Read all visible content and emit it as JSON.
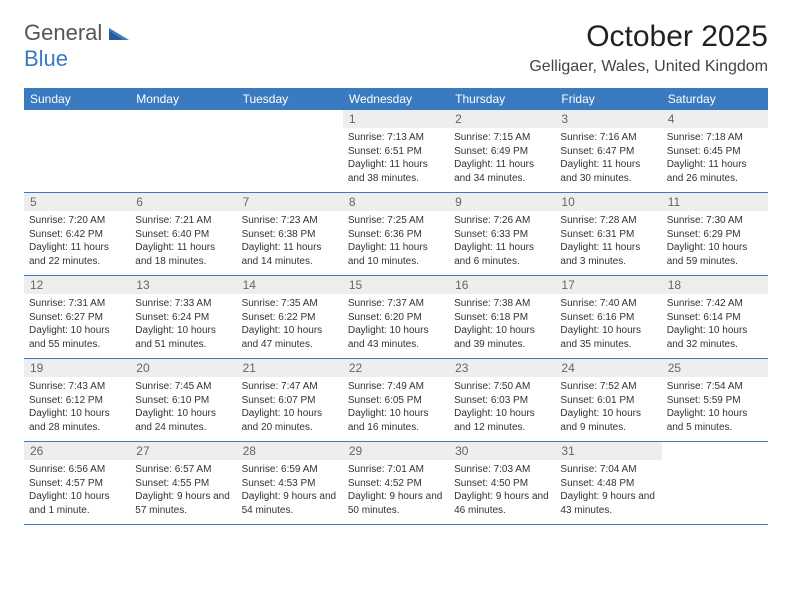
{
  "logo": {
    "general": "General",
    "blue": "Blue"
  },
  "title": "October 2025",
  "location": "Gelligaer, Wales, United Kingdom",
  "colors": {
    "header_bg": "#3a7ac0",
    "header_text": "#ffffff",
    "daynum_bg": "#eeeeee",
    "daynum_text": "#666666",
    "body_text": "#333333",
    "border": "#3a7ac0",
    "page_bg": "#ffffff"
  },
  "weekdays": [
    "Sunday",
    "Monday",
    "Tuesday",
    "Wednesday",
    "Thursday",
    "Friday",
    "Saturday"
  ],
  "weeks": [
    [
      {
        "blank": true
      },
      {
        "blank": true
      },
      {
        "blank": true
      },
      {
        "day": "1",
        "sunrise": "Sunrise: 7:13 AM",
        "sunset": "Sunset: 6:51 PM",
        "daylight": "Daylight: 11 hours and 38 minutes."
      },
      {
        "day": "2",
        "sunrise": "Sunrise: 7:15 AM",
        "sunset": "Sunset: 6:49 PM",
        "daylight": "Daylight: 11 hours and 34 minutes."
      },
      {
        "day": "3",
        "sunrise": "Sunrise: 7:16 AM",
        "sunset": "Sunset: 6:47 PM",
        "daylight": "Daylight: 11 hours and 30 minutes."
      },
      {
        "day": "4",
        "sunrise": "Sunrise: 7:18 AM",
        "sunset": "Sunset: 6:45 PM",
        "daylight": "Daylight: 11 hours and 26 minutes."
      }
    ],
    [
      {
        "day": "5",
        "sunrise": "Sunrise: 7:20 AM",
        "sunset": "Sunset: 6:42 PM",
        "daylight": "Daylight: 11 hours and 22 minutes."
      },
      {
        "day": "6",
        "sunrise": "Sunrise: 7:21 AM",
        "sunset": "Sunset: 6:40 PM",
        "daylight": "Daylight: 11 hours and 18 minutes."
      },
      {
        "day": "7",
        "sunrise": "Sunrise: 7:23 AM",
        "sunset": "Sunset: 6:38 PM",
        "daylight": "Daylight: 11 hours and 14 minutes."
      },
      {
        "day": "8",
        "sunrise": "Sunrise: 7:25 AM",
        "sunset": "Sunset: 6:36 PM",
        "daylight": "Daylight: 11 hours and 10 minutes."
      },
      {
        "day": "9",
        "sunrise": "Sunrise: 7:26 AM",
        "sunset": "Sunset: 6:33 PM",
        "daylight": "Daylight: 11 hours and 6 minutes."
      },
      {
        "day": "10",
        "sunrise": "Sunrise: 7:28 AM",
        "sunset": "Sunset: 6:31 PM",
        "daylight": "Daylight: 11 hours and 3 minutes."
      },
      {
        "day": "11",
        "sunrise": "Sunrise: 7:30 AM",
        "sunset": "Sunset: 6:29 PM",
        "daylight": "Daylight: 10 hours and 59 minutes."
      }
    ],
    [
      {
        "day": "12",
        "sunrise": "Sunrise: 7:31 AM",
        "sunset": "Sunset: 6:27 PM",
        "daylight": "Daylight: 10 hours and 55 minutes."
      },
      {
        "day": "13",
        "sunrise": "Sunrise: 7:33 AM",
        "sunset": "Sunset: 6:24 PM",
        "daylight": "Daylight: 10 hours and 51 minutes."
      },
      {
        "day": "14",
        "sunrise": "Sunrise: 7:35 AM",
        "sunset": "Sunset: 6:22 PM",
        "daylight": "Daylight: 10 hours and 47 minutes."
      },
      {
        "day": "15",
        "sunrise": "Sunrise: 7:37 AM",
        "sunset": "Sunset: 6:20 PM",
        "daylight": "Daylight: 10 hours and 43 minutes."
      },
      {
        "day": "16",
        "sunrise": "Sunrise: 7:38 AM",
        "sunset": "Sunset: 6:18 PM",
        "daylight": "Daylight: 10 hours and 39 minutes."
      },
      {
        "day": "17",
        "sunrise": "Sunrise: 7:40 AM",
        "sunset": "Sunset: 6:16 PM",
        "daylight": "Daylight: 10 hours and 35 minutes."
      },
      {
        "day": "18",
        "sunrise": "Sunrise: 7:42 AM",
        "sunset": "Sunset: 6:14 PM",
        "daylight": "Daylight: 10 hours and 32 minutes."
      }
    ],
    [
      {
        "day": "19",
        "sunrise": "Sunrise: 7:43 AM",
        "sunset": "Sunset: 6:12 PM",
        "daylight": "Daylight: 10 hours and 28 minutes."
      },
      {
        "day": "20",
        "sunrise": "Sunrise: 7:45 AM",
        "sunset": "Sunset: 6:10 PM",
        "daylight": "Daylight: 10 hours and 24 minutes."
      },
      {
        "day": "21",
        "sunrise": "Sunrise: 7:47 AM",
        "sunset": "Sunset: 6:07 PM",
        "daylight": "Daylight: 10 hours and 20 minutes."
      },
      {
        "day": "22",
        "sunrise": "Sunrise: 7:49 AM",
        "sunset": "Sunset: 6:05 PM",
        "daylight": "Daylight: 10 hours and 16 minutes."
      },
      {
        "day": "23",
        "sunrise": "Sunrise: 7:50 AM",
        "sunset": "Sunset: 6:03 PM",
        "daylight": "Daylight: 10 hours and 12 minutes."
      },
      {
        "day": "24",
        "sunrise": "Sunrise: 7:52 AM",
        "sunset": "Sunset: 6:01 PM",
        "daylight": "Daylight: 10 hours and 9 minutes."
      },
      {
        "day": "25",
        "sunrise": "Sunrise: 7:54 AM",
        "sunset": "Sunset: 5:59 PM",
        "daylight": "Daylight: 10 hours and 5 minutes."
      }
    ],
    [
      {
        "day": "26",
        "sunrise": "Sunrise: 6:56 AM",
        "sunset": "Sunset: 4:57 PM",
        "daylight": "Daylight: 10 hours and 1 minute."
      },
      {
        "day": "27",
        "sunrise": "Sunrise: 6:57 AM",
        "sunset": "Sunset: 4:55 PM",
        "daylight": "Daylight: 9 hours and 57 minutes."
      },
      {
        "day": "28",
        "sunrise": "Sunrise: 6:59 AM",
        "sunset": "Sunset: 4:53 PM",
        "daylight": "Daylight: 9 hours and 54 minutes."
      },
      {
        "day": "29",
        "sunrise": "Sunrise: 7:01 AM",
        "sunset": "Sunset: 4:52 PM",
        "daylight": "Daylight: 9 hours and 50 minutes."
      },
      {
        "day": "30",
        "sunrise": "Sunrise: 7:03 AM",
        "sunset": "Sunset: 4:50 PM",
        "daylight": "Daylight: 9 hours and 46 minutes."
      },
      {
        "day": "31",
        "sunrise": "Sunrise: 7:04 AM",
        "sunset": "Sunset: 4:48 PM",
        "daylight": "Daylight: 9 hours and 43 minutes."
      },
      {
        "blank": true
      }
    ]
  ]
}
